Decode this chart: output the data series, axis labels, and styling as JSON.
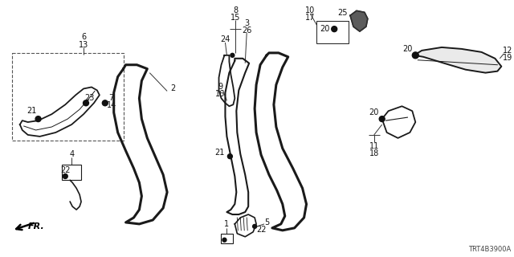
{
  "diagram_code": "TRT4B3900A",
  "bg_color": "#ffffff",
  "line_color": "#1a1a1a"
}
